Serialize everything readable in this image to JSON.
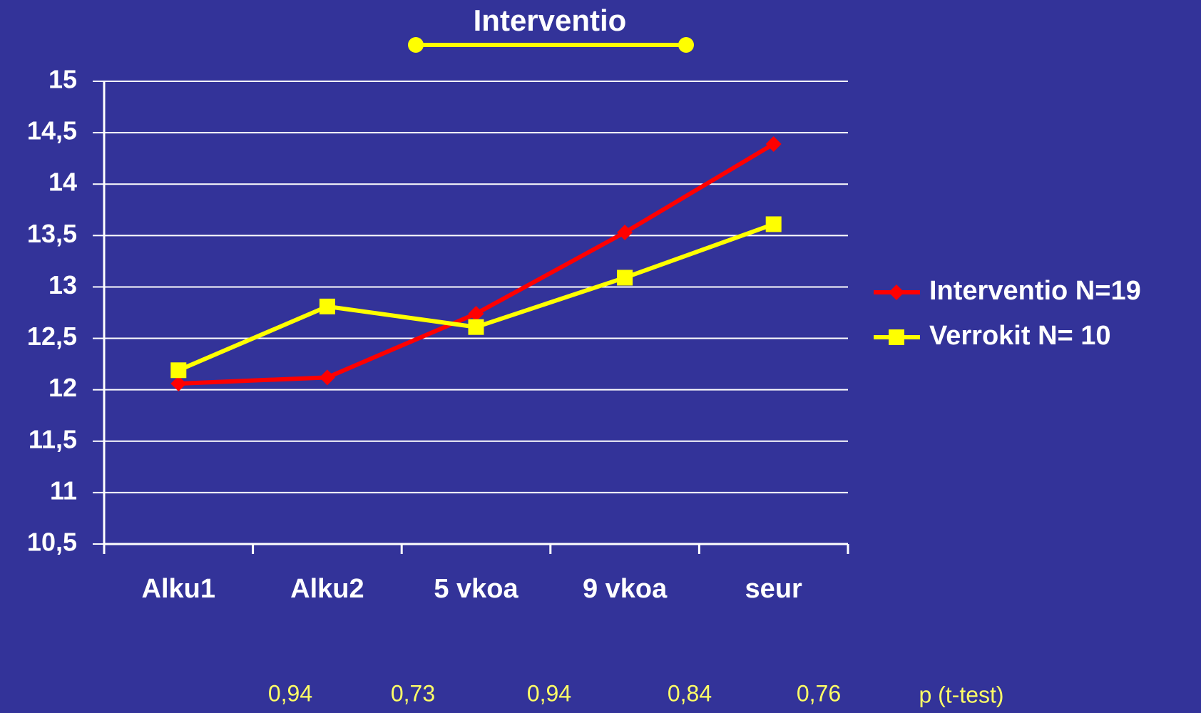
{
  "chart_data": {
    "type": "line",
    "annotation": "Interventio",
    "categories": [
      "Alku1",
      "Alku2",
      "5 vkoa",
      "9 vkoa",
      "seur"
    ],
    "series": [
      {
        "name": "Interventio N=19",
        "color": "#ff0000",
        "marker": "diamond",
        "values": [
          12.06,
          12.12,
          12.74,
          13.53,
          14.39
        ]
      },
      {
        "name": "Verrokit N= 10",
        "color": "#ffff00",
        "marker": "square",
        "values": [
          12.19,
          12.81,
          12.61,
          13.09,
          13.61
        ]
      }
    ],
    "ylim": [
      10.5,
      15
    ],
    "yticks": [
      {
        "value": 10.5,
        "label": "10,5"
      },
      11,
      {
        "value": 11.5,
        "label": "11,5"
      },
      12,
      {
        "value": 12.5,
        "label": "12,5"
      },
      13,
      {
        "value": 13.5,
        "label": "13,5"
      },
      14,
      {
        "value": 14.5,
        "label": "14,5"
      },
      15
    ],
    "grid": true,
    "legend": "right",
    "p_values": [
      "0,94",
      "0,73",
      "0,94",
      "0,84",
      "0,76"
    ],
    "p_label": "p (t-test)"
  }
}
